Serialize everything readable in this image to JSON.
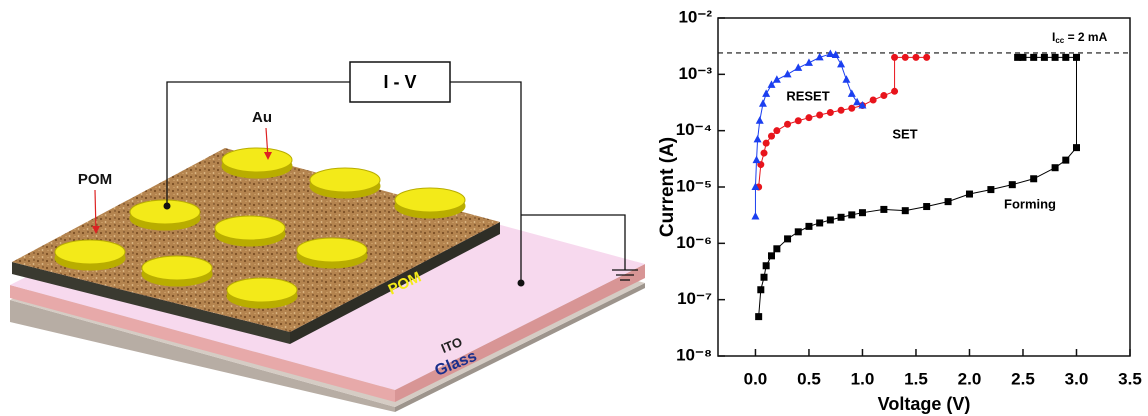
{
  "diagram": {
    "instrument": "I - V",
    "electrode_label": "Au",
    "layer_label": "POM",
    "film_label": "POM",
    "ito_label": "ITO",
    "glass_label": "Glass"
  },
  "chart_data": {
    "type": "scatter",
    "x_label": "Voltage (V)",
    "y_label": "Current (A)",
    "log_y": true,
    "xlim": [
      -0.35,
      3.5
    ],
    "xticks": [
      {
        "value": 0,
        "label": "0.0"
      },
      0.5,
      {
        "value": 1,
        "label": "1.0"
      },
      1.5,
      {
        "value": 2,
        "label": "2.0"
      },
      2.5,
      {
        "value": 3,
        "label": "3.0"
      },
      3.5
    ],
    "ylim": [
      1e-08,
      0.01
    ],
    "yticks": [
      {
        "value": 1e-08,
        "label": "10⁻⁸"
      },
      {
        "value": 1e-07,
        "label": "10⁻⁷"
      },
      {
        "value": 1e-06,
        "label": "10⁻⁶"
      },
      {
        "value": 1e-05,
        "label": "10⁻⁵"
      },
      {
        "value": 0.0001,
        "label": "10⁻⁴"
      },
      {
        "value": 0.001,
        "label": "10⁻³"
      },
      {
        "value": 0.01,
        "label": "10⁻²"
      }
    ],
    "compliance": {
      "value": 0.0024,
      "main": "I",
      "subscript": "cc",
      "suffix": " = 2 mA"
    },
    "series": [
      {
        "name": "Forming",
        "color": "#000000",
        "marker": "square",
        "x": [
          0.03,
          0.05,
          0.08,
          0.1,
          0.15,
          0.2,
          0.3,
          0.4,
          0.5,
          0.6,
          0.7,
          0.8,
          0.9,
          1.0,
          1.2,
          1.4,
          1.6,
          1.8,
          2.0,
          2.2,
          2.4,
          2.6,
          2.8,
          2.9,
          3.0,
          3.0,
          2.9,
          2.8,
          2.7,
          2.6,
          2.5,
          2.45
        ],
        "values": [
          5e-08,
          1.5e-07,
          2.5e-07,
          4e-07,
          6e-07,
          8e-07,
          1.2e-06,
          1.6e-06,
          2e-06,
          2.3e-06,
          2.6e-06,
          2.9e-06,
          3.2e-06,
          3.5e-06,
          4e-06,
          3.8e-06,
          4.5e-06,
          5.5e-06,
          7.5e-06,
          9e-06,
          1.1e-05,
          1.4e-05,
          2.2e-05,
          3e-05,
          5e-05,
          0.002,
          0.002,
          0.002,
          0.002,
          0.002,
          0.002,
          0.002
        ]
      },
      {
        "name": "SET",
        "color": "#e8141c",
        "marker": "circle",
        "x": [
          0.03,
          0.05,
          0.08,
          0.1,
          0.15,
          0.2,
          0.3,
          0.4,
          0.5,
          0.6,
          0.7,
          0.8,
          0.9,
          1.0,
          1.1,
          1.2,
          1.3,
          1.3,
          1.4,
          1.5,
          1.6
        ],
        "values": [
          1e-05,
          2.5e-05,
          4e-05,
          6e-05,
          8e-05,
          0.0001,
          0.00013,
          0.00015,
          0.00017,
          0.00019,
          0.00021,
          0.00023,
          0.00025,
          0.00028,
          0.00035,
          0.00042,
          0.0005,
          0.002,
          0.002,
          0.002,
          0.002
        ]
      },
      {
        "name": "RESET",
        "color": "#1b3ff0",
        "marker": "triangle",
        "x": [
          0.0,
          0.0,
          0.01,
          0.02,
          0.04,
          0.07,
          0.1,
          0.15,
          0.2,
          0.3,
          0.4,
          0.5,
          0.6,
          0.7,
          0.75,
          0.8,
          0.85,
          0.9,
          0.95,
          1.0
        ],
        "values": [
          3e-06,
          1e-05,
          3e-05,
          7e-05,
          0.00015,
          0.0003,
          0.00045,
          0.00065,
          0.0008,
          0.001,
          0.0013,
          0.0016,
          0.002,
          0.0023,
          0.0022,
          0.0015,
          0.0008,
          0.00045,
          0.00032,
          0.00028
        ]
      }
    ]
  }
}
